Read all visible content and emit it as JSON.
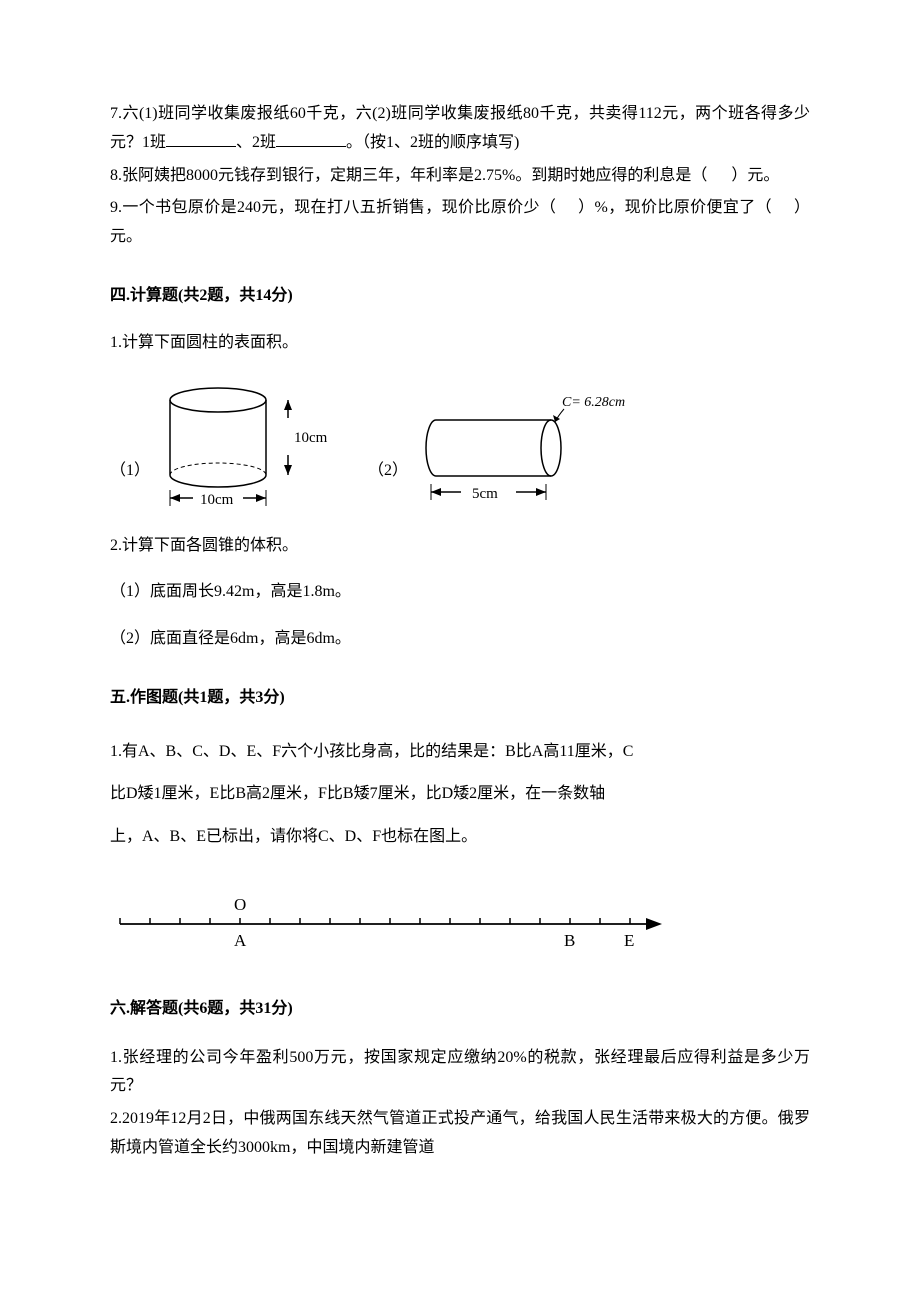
{
  "q3_7": {
    "text_a": "7.六(1)班同学收集废报纸60千克，六(2)班同学收集废报纸80千克，共卖得112元，两个班各得多少元？1班",
    "text_b": "、2班",
    "text_c": "。（按1、2班的顺序填写)"
  },
  "q3_8": {
    "text_a": "8.张阿姨把8000元钱存到银行，定期三年，年利率是2.75%。到期时她应得的利息是（",
    "text_b": "）元。"
  },
  "q3_9": {
    "text_a": "9.一个书包原价是240元，现在打八五折销售，现价比原价少（",
    "text_b": "）%，现价比原价便宜了（",
    "text_c": "）元。"
  },
  "section4": {
    "header": "四.计算题(共2题，共14分)",
    "q1": "1.计算下面圆柱的表面积。",
    "q1_fig1_label": "（1）",
    "q1_fig2_label": "（2）",
    "q2": "2.计算下面各圆锥的体积。",
    "q2_1": "（1）底面周长9.42m，高是1.8m。",
    "q2_2": "（2）底面直径是6dm，高是6dm。"
  },
  "section5": {
    "header": "五.作图题(共1题，共3分)",
    "q1_line1": "1.有A、B、C、D、E、F六个小孩比身高，比的结果是：B比A高11厘米，C",
    "q1_line2": "比D矮1厘米，E比B高2厘米，F比B矮7厘米，比D矮2厘米，在一条数轴",
    "q1_line3": "上，A、B、E已标出，请你将C、D、F也标在图上。"
  },
  "section6": {
    "header": "六.解答题(共6题，共31分)",
    "q1": "1.张经理的公司今年盈利500万元，按国家规定应缴纳20%的税款，张经理最后应得利益是多少万元？",
    "q2": "2.2019年12月2日，中俄两国东线天然气管道正式投产通气，给我国人民生活带来极大的方便。俄罗斯境内管道全长约3000km，中国境内新建管道"
  },
  "figures": {
    "cylinder1": {
      "height_label": "10cm",
      "diameter_label": "10cm",
      "stroke": "#000000",
      "fill": "#ffffff"
    },
    "cylinder2": {
      "circumference_label": "C= 6.28cm",
      "length_label": "5cm",
      "stroke": "#000000",
      "fill": "#ffffff"
    },
    "number_line": {
      "origin_label": "O",
      "point_A": "A",
      "point_B": "B",
      "point_E": "E",
      "stroke": "#000000",
      "tick_count": 18,
      "labeled_tick_A": 4,
      "labeled_tick_B": 15,
      "labeled_tick_E": 17
    }
  },
  "colors": {
    "text": "#000000",
    "bg": "#ffffff"
  }
}
